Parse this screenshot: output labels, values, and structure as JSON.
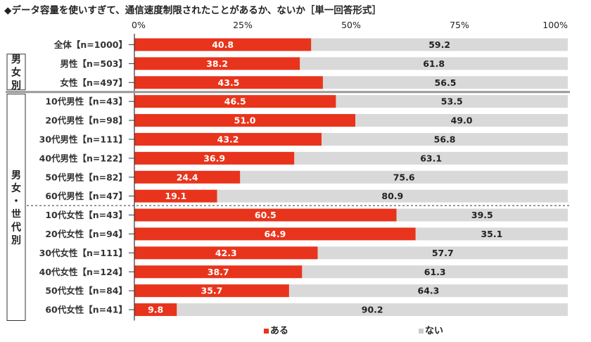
{
  "title": "◆データ容量を使いすぎて、通信速度制限されたことがあるか、ないか［単一回答形式］",
  "chart_data": {
    "type": "bar",
    "stacked": true,
    "orientation": "horizontal",
    "x_ticks": [
      "0%",
      "25%",
      "50%",
      "75%",
      "100%"
    ],
    "xlim": [
      0,
      100
    ],
    "categories": [
      "全体【n=1000】",
      "男性【n=503】",
      "女性【n=497】",
      "10代男性【n=43】",
      "20代男性【n=98】",
      "30代男性【n=111】",
      "40代男性【n=122】",
      "50代男性【n=82】",
      "60代男性【n=47】",
      "10代女性【n=43】",
      "20代女性【n=94】",
      "30代女性【n=111】",
      "40代女性【n=124】",
      "50代女性【n=84】",
      "60代女性【n=41】"
    ],
    "series": [
      {
        "name": "ある",
        "color": "#e8341c",
        "values": [
          40.8,
          38.2,
          43.5,
          46.5,
          51.0,
          43.2,
          36.9,
          24.4,
          19.1,
          60.5,
          64.9,
          42.3,
          38.7,
          35.7,
          9.8
        ]
      },
      {
        "name": "ない",
        "color": "#d9d9d9",
        "values": [
          59.2,
          61.8,
          56.5,
          53.5,
          49.0,
          56.8,
          63.1,
          75.6,
          80.9,
          39.5,
          35.1,
          57.7,
          61.3,
          64.3,
          90.2
        ]
      }
    ],
    "group_labels": [
      "男女別",
      "男女・世代別"
    ],
    "legend": "bottom"
  }
}
